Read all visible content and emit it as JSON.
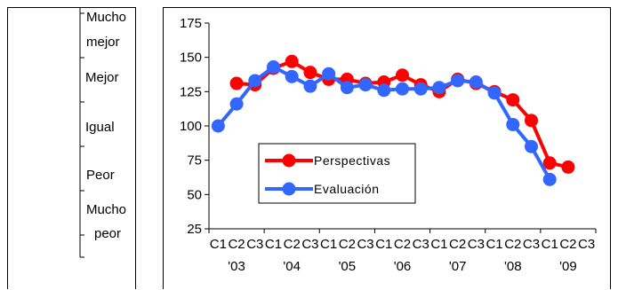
{
  "scale": {
    "labels": [
      {
        "text": "Mucho",
        "line": 1
      },
      {
        "text": "mejor",
        "line": 2
      },
      {
        "text": "Mejor",
        "line": 1
      },
      {
        "text": "Igual",
        "line": 1
      },
      {
        "text": "Peor",
        "line": 1
      },
      {
        "text": "Mucho",
        "line": 1
      },
      {
        "text": "peor",
        "line": 2
      }
    ]
  },
  "chart_data": {
    "type": "line",
    "ylim": [
      25,
      175
    ],
    "yticks": [
      25,
      50,
      75,
      100,
      125,
      150,
      175
    ],
    "quarter_labels": [
      "C1",
      "C2",
      "C3",
      "C1",
      "C2",
      "C3",
      "C1",
      "C2",
      "C3",
      "C1",
      "C2",
      "C3",
      "C1",
      "C2",
      "C3",
      "C1",
      "C2",
      "C3",
      "C1",
      "C2",
      "C3"
    ],
    "year_labels": [
      "'03",
      "'04",
      "'05",
      "'06",
      "'07",
      "'08",
      "'09"
    ],
    "legend_position": "center-left",
    "series": [
      {
        "name": "Perspectivas",
        "color": "#ff0000",
        "values": [
          null,
          131,
          130,
          142,
          147,
          139,
          134,
          134,
          131,
          132,
          137,
          130,
          125,
          134,
          131,
          125,
          119,
          104,
          73,
          70,
          null
        ]
      },
      {
        "name": "Evaluación",
        "color": "#3366ff",
        "values": [
          100,
          116,
          133,
          143,
          136,
          129,
          138,
          128,
          130,
          126,
          127,
          127,
          128,
          133,
          132,
          124,
          101,
          85,
          61,
          null,
          null
        ]
      }
    ]
  }
}
